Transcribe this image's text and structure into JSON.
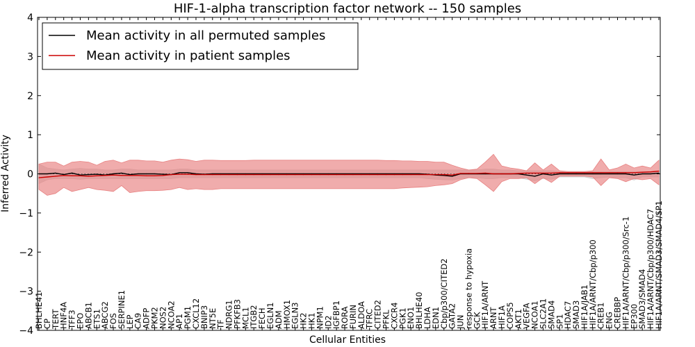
{
  "chart_data": {
    "type": "line",
    "title": "HIF-1-alpha transcription factor network -- 150 samples",
    "xlabel": "Cellular Entities",
    "ylabel": "Inferred Activity",
    "ylim": [
      -4,
      4
    ],
    "yticks": [
      "4",
      "3",
      "2",
      "1",
      "0",
      "−1",
      "−2",
      "−3",
      "−4"
    ],
    "grid": false,
    "legend_position": "top-left",
    "categories": [
      "BHLHE41",
      "CP",
      "TERT",
      "HNF4A",
      "TFF3",
      "EPO",
      "ABCB1",
      "ETS1",
      "ABCG2",
      "FOS",
      "SERPINE1",
      "LEP",
      "CA9",
      "ADFP",
      "PKM2",
      "NOS2",
      "NCOA2",
      "AP1",
      "PGM1",
      "CXCL12",
      "BNIP3",
      "NT5E",
      "TF",
      "NDRG1",
      "PFKFB3",
      "MCL1",
      "ITGB2",
      "FECH",
      "EGLN1",
      "ADM",
      "HMOX1",
      "EGLN3",
      "HK2",
      "HK1",
      "NPM1",
      "ID2",
      "IGFBP1",
      "RORA",
      "FURIN",
      "ALDOA",
      "TFRC",
      "CITED2",
      "PFKL",
      "CXCR4",
      "PGK1",
      "ENO1",
      "BHLHE40",
      "LDHA",
      "EDN1",
      "Cbp/p300/CITED2",
      "GATA2",
      "JUN",
      "response to hypoxia",
      "GCK",
      "HIF1A/ARNT",
      "ARNT",
      "HIF1A",
      "COPS5",
      "AKT1",
      "VEGFA",
      "NCOA1",
      "SLC2A1",
      "SMAD4",
      "SP1",
      "HDAC7",
      "SMAD3",
      "HIF1A/JAB1",
      "HIF1A/ARNT/Cbp/p300",
      "CREB1",
      "ENG",
      "CREBBP",
      "HIF1A/ARNT/Cbp/p300/Src-1",
      "EP300",
      "SMAD3/SMAD4",
      "HIF1A/ARNT/Cbp/p300/HDAC7",
      "HIF1A/ARNT/SMAD3/SMAD4/SP1"
    ],
    "series": [
      {
        "name": "Mean activity in all permuted samples",
        "color": "#000000",
        "values": [
          0,
          0,
          0.02,
          -0.02,
          0.02,
          -0.03,
          -0.02,
          -0.01,
          -0.03,
          0,
          0.02,
          -0.02,
          0,
          0,
          0,
          -0.01,
          -0.02,
          0.03,
          0.03,
          0,
          -0.01,
          0,
          0,
          0,
          0,
          0,
          0,
          0,
          0,
          0,
          0,
          0,
          0,
          0,
          0,
          0,
          0,
          0,
          0,
          0,
          0,
          0,
          0,
          0,
          0,
          0,
          0,
          -0.01,
          -0.03,
          -0.04,
          -0.06,
          0,
          0,
          0,
          0,
          0,
          0,
          0,
          0,
          -0.03,
          -0.06,
          0,
          -0.03,
          0,
          0,
          0,
          0,
          0,
          0,
          0,
          0,
          0,
          -0.03,
          0,
          0,
          0.02
        ],
        "band": {
          "color": "#cccccc",
          "upper": [
            0.25,
            0.15,
            0.12,
            0.1,
            0.12,
            0.14,
            0.12,
            0.12,
            0.1,
            0.1,
            0.12,
            0.12,
            0.1,
            0.1,
            0.1,
            0.1,
            0.1,
            0.12,
            0.12,
            0.1,
            0.1,
            0.1,
            0.1,
            0.1,
            0.1,
            0.1,
            0.1,
            0.1,
            0.1,
            0.1,
            0.1,
            0.1,
            0.1,
            0.1,
            0.1,
            0.1,
            0.1,
            0.1,
            0.1,
            0.1,
            0.1,
            0.1,
            0.1,
            0.1,
            0.1,
            0.1,
            0.1,
            0.1,
            0.1,
            0.1,
            0.1,
            0.1,
            0.1,
            0.1,
            0.12,
            0.12,
            0.1,
            0.1,
            0.08,
            0.08,
            0.08,
            0.08,
            0.08,
            0.06,
            0.06,
            0.06,
            0.06,
            0.06,
            0.06,
            0.06,
            0.06,
            0.06,
            0.06,
            0.06,
            0.06,
            0.08
          ],
          "lower": [
            -0.25,
            -0.15,
            -0.12,
            -0.12,
            -0.12,
            -0.14,
            -0.12,
            -0.12,
            -0.12,
            -0.12,
            -0.12,
            -0.12,
            -0.12,
            -0.12,
            -0.12,
            -0.12,
            -0.12,
            -0.1,
            -0.1,
            -0.1,
            -0.1,
            -0.1,
            -0.1,
            -0.1,
            -0.1,
            -0.1,
            -0.1,
            -0.1,
            -0.1,
            -0.1,
            -0.1,
            -0.1,
            -0.1,
            -0.1,
            -0.1,
            -0.1,
            -0.1,
            -0.1,
            -0.1,
            -0.1,
            -0.1,
            -0.1,
            -0.1,
            -0.1,
            -0.1,
            -0.1,
            -0.1,
            -0.12,
            -0.14,
            -0.15,
            -0.16,
            -0.12,
            -0.1,
            -0.1,
            -0.12,
            -0.12,
            -0.1,
            -0.1,
            -0.1,
            -0.14,
            -0.18,
            -0.12,
            -0.14,
            -0.08,
            -0.08,
            -0.08,
            -0.08,
            -0.12,
            -0.1,
            -0.08,
            -0.1,
            -0.1,
            -0.16,
            -0.08,
            -0.08,
            -0.08
          ]
        }
      },
      {
        "name": "Mean activity in patient samples",
        "color": "#cc0000",
        "values": [
          -0.1,
          -0.08,
          -0.06,
          -0.04,
          -0.05,
          -0.05,
          -0.06,
          -0.05,
          -0.04,
          -0.03,
          -0.04,
          -0.04,
          -0.04,
          -0.05,
          -0.05,
          -0.04,
          -0.02,
          -0.01,
          -0.01,
          -0.02,
          -0.02,
          -0.02,
          -0.02,
          -0.02,
          -0.02,
          -0.02,
          -0.02,
          -0.02,
          -0.02,
          -0.02,
          -0.02,
          -0.02,
          -0.02,
          -0.02,
          -0.02,
          -0.02,
          -0.02,
          -0.02,
          -0.02,
          -0.02,
          -0.02,
          -0.02,
          -0.02,
          -0.02,
          -0.02,
          -0.02,
          -0.02,
          -0.02,
          -0.02,
          -0.02,
          -0.03,
          0.01,
          0.01,
          0.01,
          0.02,
          0,
          0,
          0,
          0.01,
          0.02,
          0.02,
          0.02,
          0.02,
          0.03,
          0.03,
          0.03,
          0.03,
          0.03,
          0.03,
          0.03,
          0.03,
          0.03,
          0.03,
          0.04,
          0.05,
          0.07
        ],
        "band": {
          "color": "#e88080",
          "upper": [
            0.25,
            0.3,
            0.3,
            0.2,
            0.3,
            0.32,
            0.3,
            0.22,
            0.32,
            0.35,
            0.28,
            0.35,
            0.35,
            0.33,
            0.33,
            0.3,
            0.35,
            0.38,
            0.36,
            0.32,
            0.35,
            0.35,
            0.34,
            0.34,
            0.34,
            0.34,
            0.35,
            0.35,
            0.35,
            0.35,
            0.35,
            0.35,
            0.35,
            0.35,
            0.35,
            0.35,
            0.35,
            0.35,
            0.35,
            0.35,
            0.35,
            0.35,
            0.34,
            0.34,
            0.33,
            0.33,
            0.32,
            0.32,
            0.3,
            0.3,
            0.22,
            0.15,
            0.1,
            0.12,
            0.3,
            0.5,
            0.2,
            0.15,
            0.12,
            0.08,
            0.28,
            0.1,
            0.25,
            0.08,
            0.06,
            0.06,
            0.06,
            0.08,
            0.38,
            0.1,
            0.15,
            0.25,
            0.15,
            0.2,
            0.15,
            0.35
          ],
          "lower": [
            -0.4,
            -0.55,
            -0.5,
            -0.35,
            -0.45,
            -0.4,
            -0.35,
            -0.4,
            -0.42,
            -0.45,
            -0.3,
            -0.48,
            -0.45,
            -0.43,
            -0.43,
            -0.42,
            -0.4,
            -0.35,
            -0.4,
            -0.38,
            -0.4,
            -0.4,
            -0.38,
            -0.38,
            -0.38,
            -0.38,
            -0.38,
            -0.38,
            -0.38,
            -0.38,
            -0.38,
            -0.38,
            -0.38,
            -0.38,
            -0.38,
            -0.38,
            -0.38,
            -0.38,
            -0.38,
            -0.38,
            -0.38,
            -0.38,
            -0.38,
            -0.38,
            -0.36,
            -0.35,
            -0.34,
            -0.33,
            -0.3,
            -0.28,
            -0.25,
            -0.15,
            -0.1,
            -0.12,
            -0.28,
            -0.45,
            -0.2,
            -0.12,
            -0.12,
            -0.1,
            -0.25,
            -0.1,
            -0.22,
            -0.06,
            -0.06,
            -0.06,
            -0.06,
            -0.08,
            -0.3,
            -0.1,
            -0.12,
            -0.2,
            -0.12,
            -0.15,
            -0.12,
            -0.28
          ]
        }
      }
    ]
  }
}
